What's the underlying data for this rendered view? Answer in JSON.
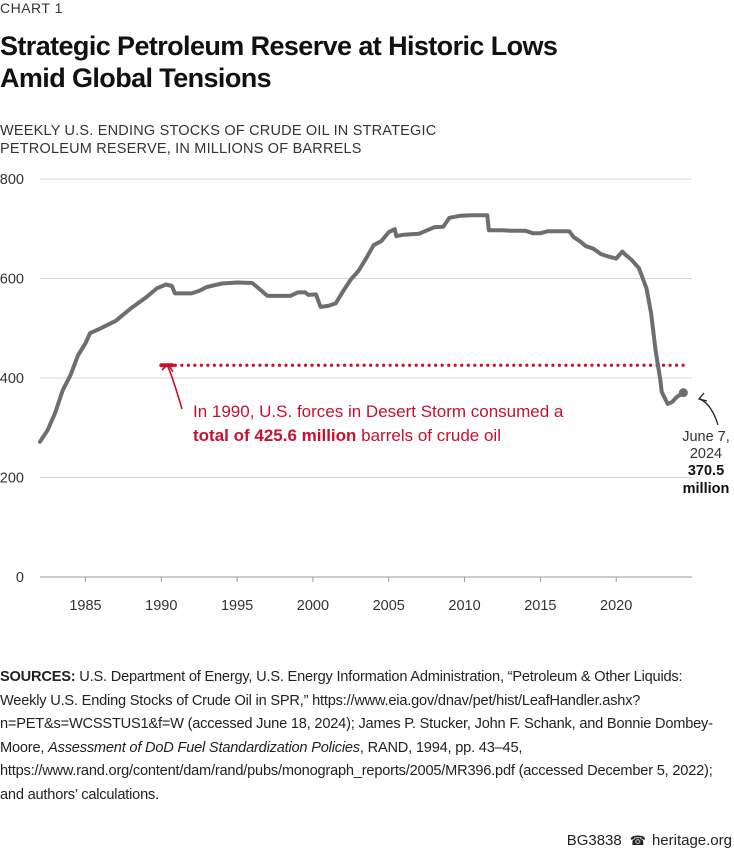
{
  "header": {
    "chart_label": "CHART 1",
    "title_line1": "Strategic Petroleum Reserve at Historic Lows",
    "title_line2": "Amid Global Tensions",
    "subtitle_line1": "WEEKLY U.S. ENDING STOCKS OF CRUDE OIL IN STRATEGIC",
    "subtitle_line2": "PETROLEUM RESERVE, IN MILLIONS OF BARRELS"
  },
  "chart_data": {
    "type": "line",
    "title": "Strategic Petroleum Reserve at Historic Lows Amid Global Tensions",
    "ylabel": "Weekly U.S. ending stocks of crude oil in Strategic Petroleum Reserve, in millions of barrels",
    "xlabel": "",
    "xlim": [
      1982,
      2025
    ],
    "ylim": [
      0,
      800
    ],
    "y_ticks": [
      0,
      200,
      400,
      600,
      800
    ],
    "y_tick_labels": [
      "0",
      "200",
      "400",
      "600",
      "800"
    ],
    "x_ticks": [
      1985,
      1990,
      1995,
      2000,
      2005,
      2010,
      2015,
      2020
    ],
    "x_tick_labels": [
      "1985",
      "1990",
      "1995",
      "2000",
      "2005",
      "2010",
      "2015",
      "2020"
    ],
    "grid": true,
    "series": [
      {
        "name": "SPR ending stocks",
        "color": "#6d6e71",
        "points": [
          [
            1982.0,
            272
          ],
          [
            1982.5,
            295
          ],
          [
            1983.0,
            330
          ],
          [
            1983.5,
            375
          ],
          [
            1984.0,
            405
          ],
          [
            1984.5,
            445
          ],
          [
            1985.0,
            470
          ],
          [
            1985.3,
            490
          ],
          [
            1986.0,
            500
          ],
          [
            1987.0,
            515
          ],
          [
            1988.0,
            540
          ],
          [
            1989.0,
            562
          ],
          [
            1989.7,
            580
          ],
          [
            1990.3,
            588
          ],
          [
            1990.7,
            585
          ],
          [
            1990.9,
            570
          ],
          [
            1991.5,
            570
          ],
          [
            1992.0,
            570
          ],
          [
            1992.5,
            575
          ],
          [
            1993.0,
            583
          ],
          [
            1994.0,
            590
          ],
          [
            1995.0,
            592
          ],
          [
            1996.0,
            591
          ],
          [
            1996.5,
            578
          ],
          [
            1997.0,
            565
          ],
          [
            1998.0,
            565
          ],
          [
            1998.5,
            565
          ],
          [
            1999.0,
            572
          ],
          [
            1999.5,
            572
          ],
          [
            1999.7,
            567
          ],
          [
            2000.2,
            568
          ],
          [
            2000.5,
            543
          ],
          [
            2001.0,
            545
          ],
          [
            2001.5,
            550
          ],
          [
            2002.0,
            575
          ],
          [
            2002.5,
            598
          ],
          [
            2003.0,
            615
          ],
          [
            2003.5,
            640
          ],
          [
            2004.0,
            667
          ],
          [
            2004.5,
            675
          ],
          [
            2005.0,
            693
          ],
          [
            2005.4,
            699
          ],
          [
            2005.5,
            685
          ],
          [
            2005.8,
            687
          ],
          [
            2006.0,
            688
          ],
          [
            2007.0,
            690
          ],
          [
            2008.0,
            703
          ],
          [
            2008.6,
            704
          ],
          [
            2009.0,
            722
          ],
          [
            2009.7,
            726
          ],
          [
            2010.5,
            727
          ],
          [
            2011.0,
            727
          ],
          [
            2011.5,
            727
          ],
          [
            2011.6,
            697
          ],
          [
            2012.5,
            697
          ],
          [
            2013.0,
            696
          ],
          [
            2014.0,
            696
          ],
          [
            2014.5,
            691
          ],
          [
            2015.0,
            691
          ],
          [
            2015.5,
            695
          ],
          [
            2016.0,
            695
          ],
          [
            2016.9,
            695
          ],
          [
            2017.2,
            683
          ],
          [
            2017.6,
            675
          ],
          [
            2018.0,
            665
          ],
          [
            2018.5,
            660
          ],
          [
            2019.0,
            649
          ],
          [
            2019.5,
            644
          ],
          [
            2020.0,
            640
          ],
          [
            2020.4,
            654
          ],
          [
            2020.6,
            648
          ],
          [
            2021.0,
            638
          ],
          [
            2021.5,
            621
          ],
          [
            2022.0,
            580
          ],
          [
            2022.3,
            530
          ],
          [
            2022.6,
            455
          ],
          [
            2022.9,
            398
          ],
          [
            2023.0,
            372
          ],
          [
            2023.4,
            348
          ],
          [
            2023.7,
            352
          ],
          [
            2024.0,
            362
          ],
          [
            2024.43,
            370.5
          ]
        ]
      }
    ],
    "reference_line": {
      "value": 425.6,
      "from_year": 1990,
      "to_year": 2024.6,
      "color": "#c8102e"
    },
    "annotations": {
      "desert_storm_line1": "In 1990, U.S. forces in Desert Storm consumed a",
      "desert_storm_bold": "total of 425.6 million",
      "desert_storm_rest": " barrels of crude oil",
      "latest_date_line1": "June 7,",
      "latest_date_line2": "2024",
      "latest_value": "370.5",
      "latest_unit": "million"
    }
  },
  "sources": {
    "label": "SOURCES:",
    "text_part1": " U.S. Department of Energy, U.S. Energy Information Administration, “Petroleum & Other Liquids: Weekly U.S. Ending Stocks of Crude Oil in SPR,” https://www.eia.gov/dnav/pet/hist/LeafHandler.ashx?n=PET&s=WCSSTUS1&f=W (accessed June 18, 2024); James P. Stucker, John F. Schank, and Bonnie Dombey-Moore, ",
    "italic": "Assessment of DoD Fuel Standardization Policies",
    "text_part2": ", RAND, 1994, pp. 43–45, https://www.rand.org/content/dam/rand/pubs/monograph_reports/2005/MR396.pdf (accessed December 5, 2022); and authors’ calculations."
  },
  "footer": {
    "code": "BG3838",
    "site": "heritage.org"
  }
}
